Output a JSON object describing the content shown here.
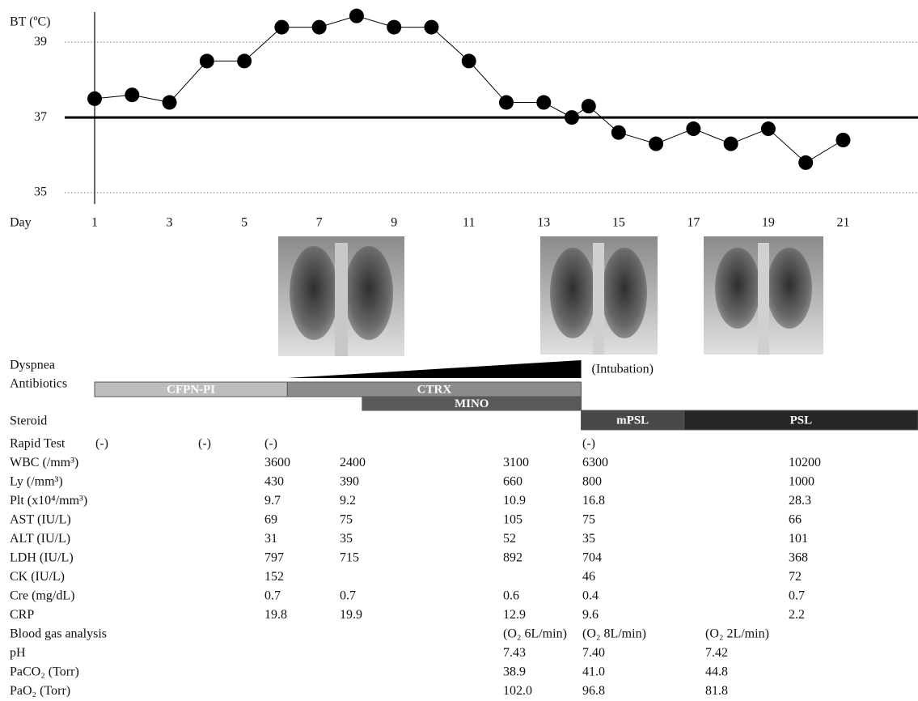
{
  "chart_data": {
    "type": "line",
    "title": "BT (ºC)",
    "x_label": "Day",
    "x": [
      1,
      2,
      3,
      4,
      5,
      6,
      7,
      8,
      9,
      10,
      11,
      12,
      13,
      13.75,
      14.2,
      15,
      16,
      17,
      18,
      19,
      20,
      21
    ],
    "series": [
      {
        "color": "#000000",
        "values": [
          37.5,
          37.6,
          37.4,
          38.5,
          38.5,
          39.4,
          39.4,
          39.7,
          39.4,
          39.4,
          38.5,
          37.4,
          37.4,
          37.0,
          37.3,
          36.6,
          36.3,
          36.7,
          36.3,
          36.7,
          35.8,
          36.4
        ]
      }
    ],
    "xlim": [
      0.2,
      23
    ],
    "ylim": [
      34.7,
      39.8
    ],
    "xticks": [
      1,
      3,
      5,
      7,
      9,
      11,
      13,
      15,
      17,
      19,
      21
    ],
    "yticks": [
      35,
      37,
      39
    ],
    "grid": true,
    "threshold": 37
  },
  "course": {
    "dyspnea": {
      "label": "Dyspnea",
      "start": 6.15,
      "end": 14,
      "note": "(Intubation)",
      "color": "#000000"
    },
    "antibiotics": {
      "label": "Antibiotics",
      "bars": [
        {
          "name": "CFPN-PI",
          "start": 1,
          "end": 6.15,
          "color": "#bdbdbd"
        },
        {
          "name": "CTRX",
          "start": 6.15,
          "end": 14,
          "color": "#8c8c8c"
        },
        {
          "name": "MINO",
          "start": 8.15,
          "end": 14,
          "color": "#5a5a5a"
        }
      ]
    },
    "steroid": {
      "label": "Steroid",
      "bars": [
        {
          "name": "mPSL",
          "start": 14,
          "end": 16.75,
          "color": "#484848"
        },
        {
          "name": "PSL",
          "start": 16.75,
          "end": 23,
          "color": "#262626"
        }
      ]
    }
  },
  "table": {
    "rows": [
      {
        "label": "Rapid Test",
        "cells": [
          "(-)",
          "(-)",
          "(-)",
          null,
          null,
          "(-)",
          null,
          null
        ]
      },
      {
        "label": "WBC (/mm³)",
        "cells": [
          null,
          null,
          "3600",
          "2400",
          "3100",
          "6300",
          null,
          "10200"
        ]
      },
      {
        "label": "Ly (/mm³)",
        "cells": [
          null,
          null,
          "430",
          "390",
          "660",
          "800",
          null,
          "1000"
        ]
      },
      {
        "label": "Plt (x10⁴/mm³)",
        "cells": [
          null,
          null,
          "9.7",
          "9.2",
          "10.9",
          "16.8",
          null,
          "28.3"
        ]
      },
      {
        "label": "AST (IU/L)",
        "cells": [
          null,
          null,
          "69",
          "75",
          "105",
          "75",
          null,
          "66"
        ]
      },
      {
        "label": "ALT (IU/L)",
        "cells": [
          null,
          null,
          "31",
          "35",
          "52",
          "35",
          null,
          "101"
        ]
      },
      {
        "label": "LDH (IU/L)",
        "cells": [
          null,
          null,
          "797",
          "715",
          "892",
          "704",
          null,
          "368"
        ]
      },
      {
        "label": "CK (IU/L)",
        "cells": [
          null,
          null,
          "152",
          null,
          null,
          "46",
          null,
          "72"
        ]
      },
      {
        "label": "Cre (mg/dL)",
        "cells": [
          null,
          null,
          "0.7",
          "0.7",
          "0.6",
          "0.4",
          null,
          "0.7"
        ]
      },
      {
        "label": "CRP",
        "cells": [
          null,
          null,
          "19.8",
          "19.9",
          "12.9",
          "9.6",
          null,
          "2.2"
        ]
      },
      {
        "label": "Blood gas analysis",
        "cells": [
          null,
          null,
          null,
          null,
          "(O₂ 6L/min)",
          "(O₂ 8L/min)",
          "(O₂ 2L/min)",
          null
        ]
      },
      {
        "label": "pH",
        "cells": [
          null,
          null,
          null,
          null,
          "7.43",
          "7.40",
          "7.42",
          null
        ]
      },
      {
        "label": "PaCO₂ (Torr)",
        "cells": [
          null,
          null,
          null,
          null,
          "38.9",
          "41.0",
          "44.8",
          null
        ]
      },
      {
        "label": "PaO₂ (Torr)",
        "cells": [
          null,
          null,
          null,
          null,
          "102.0",
          "96.8",
          "81.8",
          null
        ]
      }
    ]
  }
}
